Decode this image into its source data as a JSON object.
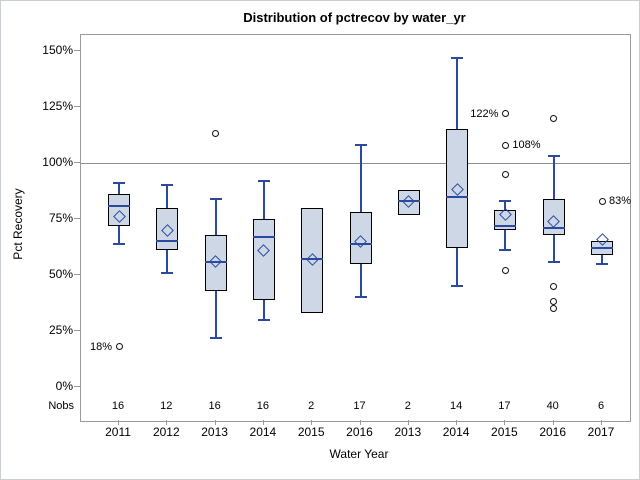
{
  "window": {
    "title": "Distribution of pctrecov by water_yr"
  },
  "chart_data": {
    "type": "box",
    "title": "Distribution of pctrecov by water_yr",
    "xlabel": "Water Year",
    "ylabel": "Pct Recovery",
    "nobs_row_label": "Nobs",
    "ylim": [
      0,
      157
    ],
    "yticks": [
      {
        "value": 0,
        "label": "0%"
      },
      {
        "value": 25,
        "label": "25%"
      },
      {
        "value": 50,
        "label": "50%"
      },
      {
        "value": 75,
        "label": "75%"
      },
      {
        "value": 100,
        "label": "100%"
      },
      {
        "value": 125,
        "label": "125%"
      },
      {
        "value": 150,
        "label": "150%"
      }
    ],
    "reference_line": 100,
    "grid": "off",
    "legend": "none",
    "colors": {
      "box_fill": "#cdd7e6",
      "box_border": "#000000",
      "whisker_median_mean": "#2b4a9f",
      "outlier_stroke": "#111111",
      "reference_line": "#8f8f8f",
      "axis_frame": "#9b9b9b"
    },
    "categories": [
      {
        "label": "2011",
        "nobs": "16",
        "whisker_low": 64,
        "q1": 72,
        "median": 81,
        "q3": 86,
        "whisker_high": 91,
        "mean": 76,
        "outliers": [
          {
            "value": 18,
            "label": "18%",
            "label_side": "left"
          }
        ]
      },
      {
        "label": "2012",
        "nobs": "12",
        "whisker_low": 51,
        "q1": 61,
        "median": 65,
        "q3": 80,
        "whisker_high": 90,
        "mean": 70,
        "outliers": []
      },
      {
        "label": "2013",
        "nobs": "16",
        "whisker_low": 22,
        "q1": 43,
        "median": 56,
        "q3": 68,
        "whisker_high": 84,
        "mean": 56,
        "outliers": [
          {
            "value": 113
          }
        ]
      },
      {
        "label": "2014",
        "nobs": "16",
        "whisker_low": 30,
        "q1": 39,
        "median": 67,
        "q3": 75,
        "whisker_high": 92,
        "mean": 61,
        "outliers": []
      },
      {
        "label": "2015",
        "nobs": "2",
        "whisker_low": 33,
        "q1": 33,
        "median": 57,
        "q3": 80,
        "whisker_high": 80,
        "mean": 57,
        "outliers": []
      },
      {
        "label": "2016",
        "nobs": "17",
        "whisker_low": 40,
        "q1": 55,
        "median": 64,
        "q3": 78,
        "whisker_high": 108,
        "mean": 65,
        "outliers": []
      },
      {
        "label": "2013",
        "nobs": "2",
        "whisker_low": 77,
        "q1": 77,
        "median": 83,
        "q3": 88,
        "whisker_high": 88,
        "mean": 83,
        "outliers": []
      },
      {
        "label": "2014",
        "nobs": "14",
        "whisker_low": 45,
        "q1": 62,
        "median": 85,
        "q3": 115,
        "whisker_high": 147,
        "mean": 88,
        "outliers": []
      },
      {
        "label": "2015",
        "nobs": "17",
        "whisker_low": 61,
        "q1": 70,
        "median": 72,
        "q3": 79,
        "whisker_high": 83,
        "mean": 77,
        "outliers": [
          {
            "value": 122,
            "label": "122%",
            "label_side": "left"
          },
          {
            "value": 108,
            "label": "108%",
            "label_side": "right"
          },
          {
            "value": 95
          },
          {
            "value": 52
          }
        ]
      },
      {
        "label": "2016",
        "nobs": "40",
        "whisker_low": 56,
        "q1": 68,
        "median": 71,
        "q3": 84,
        "whisker_high": 103,
        "mean": 74,
        "outliers": [
          {
            "value": 120
          },
          {
            "value": 45
          },
          {
            "value": 38
          },
          {
            "value": 35
          }
        ]
      },
      {
        "label": "2017",
        "nobs": "6",
        "whisker_low": 55,
        "q1": 59,
        "median": 62,
        "q3": 65,
        "whisker_high": 65,
        "mean": 66,
        "outliers": [
          {
            "value": 83,
            "label": "83%",
            "label_side": "right"
          }
        ]
      }
    ]
  }
}
